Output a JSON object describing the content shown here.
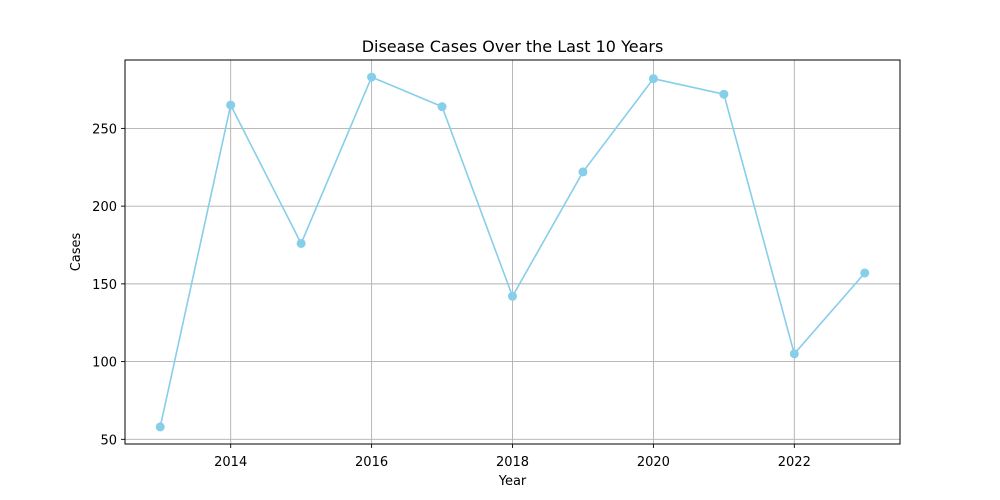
{
  "chart_data": {
    "type": "line",
    "title": "Disease Cases Over the Last 10 Years",
    "xlabel": "Year",
    "ylabel": "Cases",
    "xlim": [
      2012.5,
      2023.5
    ],
    "ylim": [
      47,
      294
    ],
    "xticks": [
      2014,
      2016,
      2018,
      2020,
      2022
    ],
    "yticks": [
      50,
      100,
      150,
      200,
      250
    ],
    "grid": true,
    "series": [
      {
        "color": "#87CEEB",
        "marker": "circle",
        "x": [
          2013,
          2014,
          2015,
          2016,
          2017,
          2018,
          2019,
          2020,
          2021,
          2022,
          2023
        ],
        "values": [
          58,
          265,
          176,
          283,
          264,
          142,
          222,
          282,
          272,
          105,
          157
        ]
      }
    ]
  }
}
